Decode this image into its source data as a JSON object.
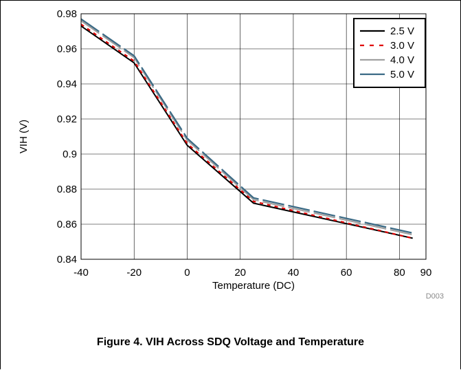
{
  "caption": "Figure 4. VIH Across SDQ Voltage and Temperature",
  "figure_id": "D003",
  "colors": {
    "series_2_5": "#000000",
    "series_3_0": "#e00000",
    "series_4_0": "#a0a0a0",
    "series_5_0": "#3a6a85",
    "grid": "#000000"
  },
  "chart_data": {
    "type": "line",
    "title": "",
    "xlabel": "Temperature (DC)",
    "ylabel": "VIH (V)",
    "xlim": [
      -40,
      90
    ],
    "ylim": [
      0.84,
      0.98
    ],
    "x_ticks": [
      -40,
      -20,
      0,
      20,
      40,
      60,
      80,
      90
    ],
    "x_tick_labels": [
      "-40",
      "-20",
      "0",
      "20",
      "40",
      "60",
      "80",
      "90"
    ],
    "y_ticks": [
      0.84,
      0.86,
      0.88,
      0.9,
      0.92,
      0.94,
      0.96,
      0.98
    ],
    "y_tick_labels": [
      "0.84",
      "0.86",
      "0.88",
      "0.9",
      "0.92",
      "0.94",
      "0.96",
      "0.98"
    ],
    "grid": true,
    "legend_position": "top-right",
    "series": [
      {
        "name": "2.5 V",
        "style": "solid",
        "color": "#000000",
        "x": [
          -40,
          -20,
          0,
          25,
          85
        ],
        "y": [
          0.973,
          0.952,
          0.905,
          0.872,
          0.852
        ]
      },
      {
        "name": "3.0 V",
        "style": "dashed",
        "color": "#e00000",
        "x": [
          -40,
          -20,
          0,
          25,
          85
        ],
        "y": [
          0.974,
          0.953,
          0.906,
          0.873,
          0.852
        ]
      },
      {
        "name": "4.0 V",
        "style": "long-dash",
        "color": "#a0a0a0",
        "x": [
          -40,
          -20,
          0,
          25,
          85
        ],
        "y": [
          0.976,
          0.955,
          0.908,
          0.874,
          0.854
        ]
      },
      {
        "name": "5.0 V",
        "style": "long-dash",
        "color": "#3a6a85",
        "x": [
          -40,
          -20,
          0,
          25,
          85
        ],
        "y": [
          0.977,
          0.956,
          0.909,
          0.875,
          0.855
        ]
      }
    ]
  }
}
